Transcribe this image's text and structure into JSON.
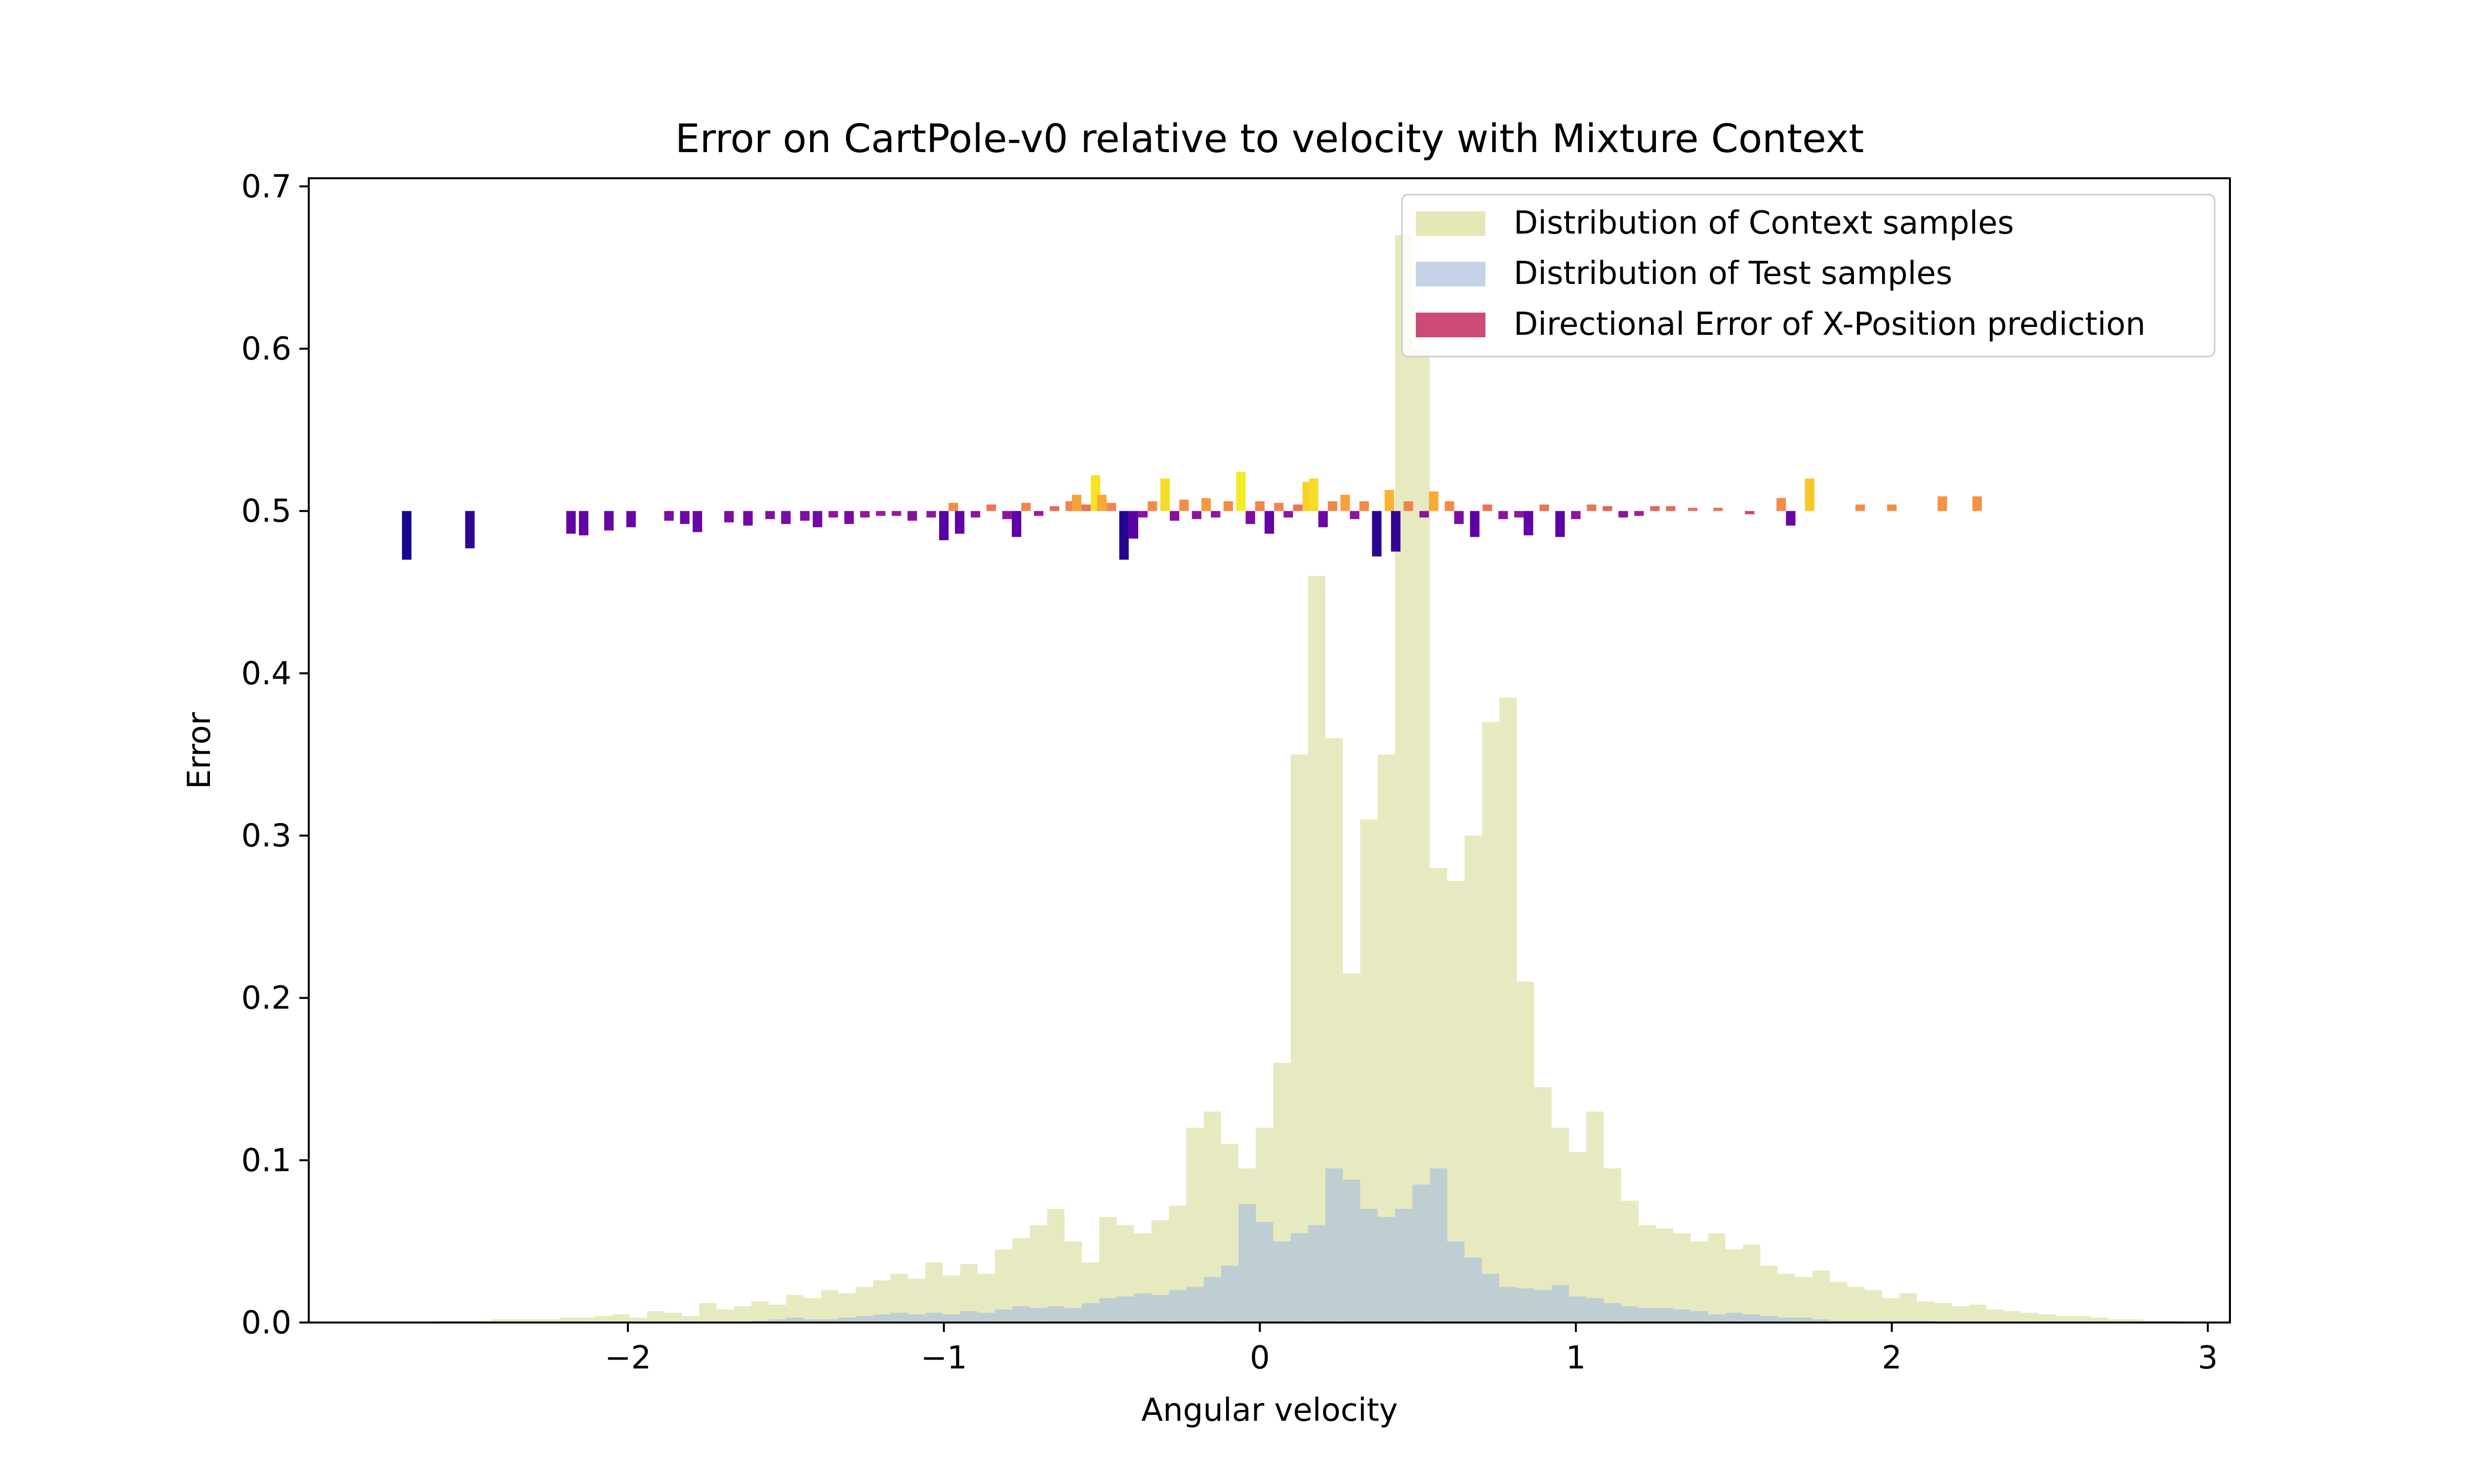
{
  "chart_data": {
    "type": "bar",
    "title": "Error on CartPole-v0 relative to velocity with Mixture Context",
    "xlabel": "Angular velocity",
    "ylabel": "Error",
    "xlim": [
      -3.01,
      3.07
    ],
    "ylim": [
      0.0,
      0.705
    ],
    "xticks": [
      -2,
      -1,
      0,
      1,
      2,
      3
    ],
    "xtick_labels": [
      "−2",
      "−1",
      "0",
      "1",
      "2",
      "3"
    ],
    "yticks": [
      0.0,
      0.1,
      0.2,
      0.3,
      0.4,
      0.5,
      0.6,
      0.7
    ],
    "ytick_labels": [
      "0.0",
      "0.1",
      "0.2",
      "0.3",
      "0.4",
      "0.5",
      "0.6",
      "0.7"
    ],
    "grid": false,
    "legend_position": "top-right",
    "legend": [
      {
        "label": "Distribution of Context samples",
        "color": "#e5e8b6"
      },
      {
        "label": "Distribution of Test samples",
        "color": "#c4d4e6"
      },
      {
        "label": "Directional Error of X-Position prediction",
        "color": "#cc4a75"
      }
    ],
    "colors": {
      "context": "#d4d98c",
      "context_opacity": 0.55,
      "test": "#a9bfdc",
      "test_opacity": 0.65,
      "error_colormap": [
        "#0d0887",
        "#5c01a6",
        "#9c179e",
        "#cc4778",
        "#ed7953",
        "#fdb42f",
        "#f0f921"
      ]
    },
    "context_hist": {
      "bin_start": -2.6,
      "bin_width": 0.05505,
      "counts": [
        0.001,
        0.001,
        0.001,
        0.002,
        0.002,
        0.002,
        0.002,
        0.003,
        0.003,
        0.004,
        0.005,
        0.003,
        0.007,
        0.006,
        0.004,
        0.012,
        0.008,
        0.01,
        0.013,
        0.011,
        0.017,
        0.015,
        0.02,
        0.018,
        0.022,
        0.026,
        0.03,
        0.027,
        0.037,
        0.029,
        0.036,
        0.03,
        0.045,
        0.052,
        0.06,
        0.07,
        0.05,
        0.037,
        0.065,
        0.06,
        0.055,
        0.063,
        0.072,
        0.12,
        0.13,
        0.11,
        0.095,
        0.12,
        0.16,
        0.35,
        0.46,
        0.36,
        0.215,
        0.31,
        0.35,
        0.67,
        0.6,
        0.28,
        0.272,
        0.3,
        0.37,
        0.385,
        0.21,
        0.145,
        0.12,
        0.105,
        0.13,
        0.095,
        0.075,
        0.06,
        0.058,
        0.055,
        0.05,
        0.055,
        0.045,
        0.048,
        0.035,
        0.03,
        0.028,
        0.032,
        0.025,
        0.022,
        0.02,
        0.015,
        0.018,
        0.013,
        0.012,
        0.01,
        0.011,
        0.008,
        0.007,
        0.006,
        0.005,
        0.004,
        0.004,
        0.003,
        0.002,
        0.002,
        0.001,
        0.001
      ]
    },
    "test_hist": {
      "bin_start": -2.6,
      "bin_width": 0.05505,
      "counts": [
        0,
        0,
        0,
        0,
        0,
        0,
        0,
        0,
        0,
        0,
        0,
        0,
        0,
        0,
        0,
        0,
        0,
        0,
        0.001,
        0.002,
        0.003,
        0.002,
        0.002,
        0.003,
        0.004,
        0.005,
        0.006,
        0.005,
        0.006,
        0.005,
        0.007,
        0.006,
        0.008,
        0.01,
        0.009,
        0.01,
        0.009,
        0.012,
        0.015,
        0.016,
        0.018,
        0.017,
        0.02,
        0.022,
        0.028,
        0.035,
        0.073,
        0.062,
        0.05,
        0.055,
        0.06,
        0.095,
        0.088,
        0.07,
        0.065,
        0.07,
        0.085,
        0.095,
        0.05,
        0.04,
        0.03,
        0.022,
        0.021,
        0.02,
        0.023,
        0.016,
        0.015,
        0.012,
        0.01,
        0.009,
        0.009,
        0.008,
        0.007,
        0.005,
        0.006,
        0.005,
        0.004,
        0.003,
        0.003,
        0.002,
        0.001,
        0.001,
        0.001,
        0.001,
        0.001,
        0.001,
        0,
        0,
        0,
        0,
        0,
        0,
        0,
        0,
        0,
        0,
        0,
        0,
        0,
        0
      ]
    },
    "error_bars": [
      {
        "x": -2.7,
        "y": -0.03,
        "c": 0.02
      },
      {
        "x": -2.5,
        "y": -0.023,
        "c": 0.07
      },
      {
        "x": -2.18,
        "y": -0.014,
        "c": 0.18
      },
      {
        "x": -2.14,
        "y": -0.015,
        "c": 0.18
      },
      {
        "x": -2.06,
        "y": -0.012,
        "c": 0.2
      },
      {
        "x": -1.99,
        "y": -0.01,
        "c": 0.2
      },
      {
        "x": -1.87,
        "y": -0.006,
        "c": 0.25
      },
      {
        "x": -1.82,
        "y": -0.008,
        "c": 0.22
      },
      {
        "x": -1.78,
        "y": -0.013,
        "c": 0.2
      },
      {
        "x": -1.68,
        "y": -0.007,
        "c": 0.25
      },
      {
        "x": -1.62,
        "y": -0.009,
        "c": 0.23
      },
      {
        "x": -1.55,
        "y": -0.005,
        "c": 0.27
      },
      {
        "x": -1.5,
        "y": -0.008,
        "c": 0.24
      },
      {
        "x": -1.44,
        "y": -0.006,
        "c": 0.26
      },
      {
        "x": -1.4,
        "y": -0.01,
        "c": 0.22
      },
      {
        "x": -1.35,
        "y": -0.004,
        "c": 0.3
      },
      {
        "x": -1.3,
        "y": -0.008,
        "c": 0.24
      },
      {
        "x": -1.25,
        "y": -0.004,
        "c": 0.32
      },
      {
        "x": -1.2,
        "y": -0.003,
        "c": 0.34
      },
      {
        "x": -1.15,
        "y": -0.003,
        "c": 0.33
      },
      {
        "x": -1.1,
        "y": -0.006,
        "c": 0.28
      },
      {
        "x": -1.04,
        "y": -0.004,
        "c": 0.3
      },
      {
        "x": -1.0,
        "y": -0.018,
        "c": 0.15
      },
      {
        "x": -0.97,
        "y": 0.005,
        "c": 0.72
      },
      {
        "x": -0.95,
        "y": -0.014,
        "c": 0.18
      },
      {
        "x": -0.9,
        "y": -0.004,
        "c": 0.3
      },
      {
        "x": -0.85,
        "y": 0.004,
        "c": 0.65
      },
      {
        "x": -0.8,
        "y": -0.005,
        "c": 0.3
      },
      {
        "x": -0.77,
        "y": -0.016,
        "c": 0.17
      },
      {
        "x": -0.74,
        "y": 0.005,
        "c": 0.7
      },
      {
        "x": -0.7,
        "y": -0.003,
        "c": 0.35
      },
      {
        "x": -0.65,
        "y": 0.003,
        "c": 0.62
      },
      {
        "x": -0.6,
        "y": 0.006,
        "c": 0.7
      },
      {
        "x": -0.58,
        "y": 0.01,
        "c": 0.78
      },
      {
        "x": -0.55,
        "y": 0.004,
        "c": 0.65
      },
      {
        "x": -0.52,
        "y": 0.022,
        "c": 0.95
      },
      {
        "x": -0.5,
        "y": 0.01,
        "c": 0.8
      },
      {
        "x": -0.47,
        "y": 0.005,
        "c": 0.7
      },
      {
        "x": -0.43,
        "y": -0.03,
        "c": 0.05
      },
      {
        "x": -0.4,
        "y": -0.017,
        "c": 0.16
      },
      {
        "x": -0.37,
        "y": -0.004,
        "c": 0.3
      },
      {
        "x": -0.34,
        "y": 0.006,
        "c": 0.72
      },
      {
        "x": -0.3,
        "y": 0.02,
        "c": 0.93
      },
      {
        "x": -0.27,
        "y": -0.006,
        "c": 0.28
      },
      {
        "x": -0.24,
        "y": 0.007,
        "c": 0.73
      },
      {
        "x": -0.2,
        "y": -0.005,
        "c": 0.3
      },
      {
        "x": -0.17,
        "y": 0.008,
        "c": 0.76
      },
      {
        "x": -0.14,
        "y": -0.004,
        "c": 0.3
      },
      {
        "x": -0.1,
        "y": 0.006,
        "c": 0.72
      },
      {
        "x": -0.06,
        "y": 0.024,
        "c": 0.97
      },
      {
        "x": -0.03,
        "y": -0.008,
        "c": 0.25
      },
      {
        "x": 0.0,
        "y": 0.006,
        "c": 0.7
      },
      {
        "x": 0.03,
        "y": -0.014,
        "c": 0.18
      },
      {
        "x": 0.06,
        "y": 0.005,
        "c": 0.7
      },
      {
        "x": 0.09,
        "y": -0.004,
        "c": 0.3
      },
      {
        "x": 0.12,
        "y": 0.004,
        "c": 0.65
      },
      {
        "x": 0.15,
        "y": 0.018,
        "c": 0.9
      },
      {
        "x": 0.17,
        "y": 0.02,
        "c": 0.93
      },
      {
        "x": 0.2,
        "y": -0.01,
        "c": 0.22
      },
      {
        "x": 0.23,
        "y": 0.006,
        "c": 0.7
      },
      {
        "x": 0.27,
        "y": 0.01,
        "c": 0.78
      },
      {
        "x": 0.3,
        "y": -0.005,
        "c": 0.3
      },
      {
        "x": 0.33,
        "y": 0.006,
        "c": 0.72
      },
      {
        "x": 0.37,
        "y": -0.028,
        "c": 0.06
      },
      {
        "x": 0.41,
        "y": 0.013,
        "c": 0.83
      },
      {
        "x": 0.43,
        "y": -0.025,
        "c": 0.08
      },
      {
        "x": 0.47,
        "y": 0.006,
        "c": 0.7
      },
      {
        "x": 0.52,
        "y": -0.004,
        "c": 0.3
      },
      {
        "x": 0.55,
        "y": 0.012,
        "c": 0.8
      },
      {
        "x": 0.6,
        "y": 0.006,
        "c": 0.72
      },
      {
        "x": 0.63,
        "y": -0.008,
        "c": 0.25
      },
      {
        "x": 0.68,
        "y": -0.016,
        "c": 0.17
      },
      {
        "x": 0.72,
        "y": 0.004,
        "c": 0.65
      },
      {
        "x": 0.77,
        "y": -0.005,
        "c": 0.3
      },
      {
        "x": 0.82,
        "y": -0.004,
        "c": 0.3
      },
      {
        "x": 0.85,
        "y": -0.015,
        "c": 0.18
      },
      {
        "x": 0.9,
        "y": 0.004,
        "c": 0.65
      },
      {
        "x": 0.95,
        "y": -0.016,
        "c": 0.17
      },
      {
        "x": 1.0,
        "y": -0.005,
        "c": 0.3
      },
      {
        "x": 1.05,
        "y": 0.004,
        "c": 0.65
      },
      {
        "x": 1.1,
        "y": 0.003,
        "c": 0.6
      },
      {
        "x": 1.15,
        "y": -0.004,
        "c": 0.3
      },
      {
        "x": 1.2,
        "y": -0.003,
        "c": 0.35
      },
      {
        "x": 1.25,
        "y": 0.003,
        "c": 0.6
      },
      {
        "x": 1.3,
        "y": 0.003,
        "c": 0.62
      },
      {
        "x": 1.37,
        "y": 0.002,
        "c": 0.65
      },
      {
        "x": 1.45,
        "y": 0.002,
        "c": 0.66
      },
      {
        "x": 1.55,
        "y": -0.002,
        "c": 0.5
      },
      {
        "x": 1.65,
        "y": 0.008,
        "c": 0.72
      },
      {
        "x": 1.68,
        "y": -0.009,
        "c": 0.2
      },
      {
        "x": 1.74,
        "y": 0.02,
        "c": 0.88
      },
      {
        "x": 1.9,
        "y": 0.004,
        "c": 0.72
      },
      {
        "x": 2.0,
        "y": 0.004,
        "c": 0.72
      },
      {
        "x": 2.16,
        "y": 0.009,
        "c": 0.74
      },
      {
        "x": 2.27,
        "y": 0.009,
        "c": 0.74
      }
    ]
  }
}
